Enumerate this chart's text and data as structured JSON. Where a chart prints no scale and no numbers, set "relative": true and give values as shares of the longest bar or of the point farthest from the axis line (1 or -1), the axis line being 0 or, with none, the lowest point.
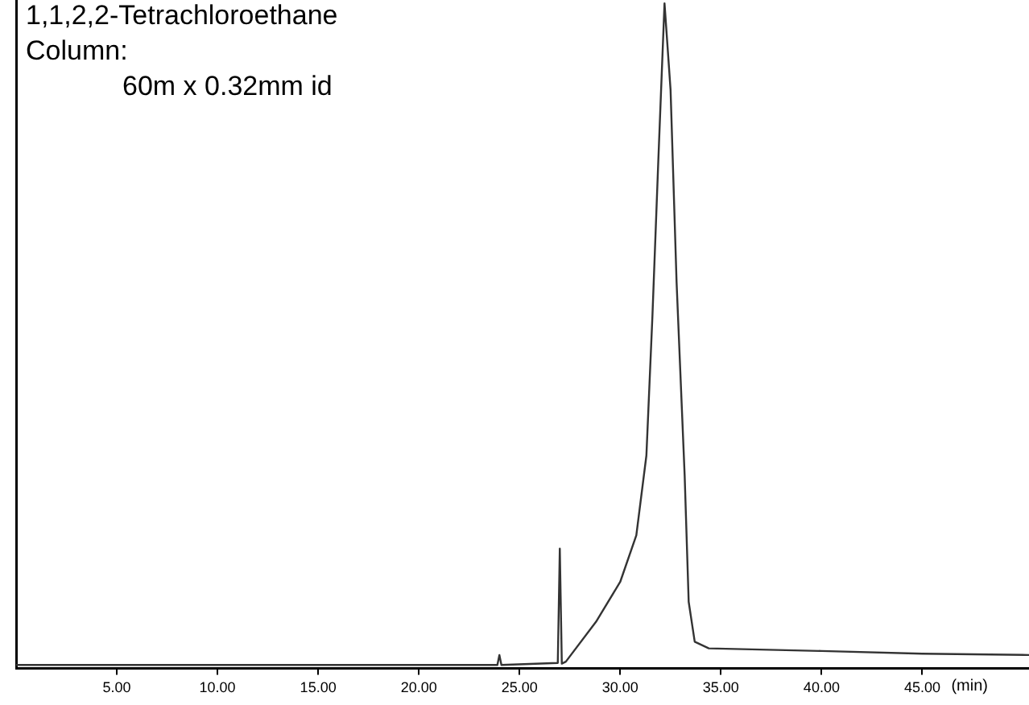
{
  "chart_data": {
    "type": "line",
    "title": "1,1,2,2-Tetrachloroethane",
    "annotations": [
      "Column:",
      "60m x 0.32mm id"
    ],
    "xlabel": "(min)",
    "relative": true,
    "tick_labels": "x",
    "grid": false,
    "legend": false,
    "marker": "none",
    "line_style": "solid",
    "xlim": [
      0,
      50.3
    ],
    "xticks": [
      {
        "value": 5,
        "label": "5.00"
      },
      {
        "value": 10,
        "label": "10.00"
      },
      {
        "value": 15,
        "label": "15.00"
      },
      {
        "value": 20,
        "label": "20.00"
      },
      {
        "value": 25,
        "label": "25.00"
      },
      {
        "value": 30,
        "label": "30.00"
      },
      {
        "value": 35,
        "label": "35.00"
      },
      {
        "value": 40,
        "label": "40.00"
      },
      {
        "value": 45,
        "label": "45.00"
      }
    ],
    "series": [
      {
        "color": "#333333",
        "x": [
          0,
          23.9,
          24.0,
          24.1,
          26.9,
          27.0,
          27.1,
          27.3,
          28.8,
          30.0,
          30.8,
          31.3,
          31.6,
          31.9,
          32.2,
          32.5,
          32.8,
          33.2,
          33.4,
          33.7,
          34.4,
          40,
          45,
          50.3
        ],
        "values": [
          0.005,
          0.005,
          0.02,
          0.005,
          0.008,
          0.18,
          0.007,
          0.01,
          0.07,
          0.13,
          0.2,
          0.32,
          0.53,
          0.77,
          1,
          0.87,
          0.58,
          0.29,
          0.1,
          0.04,
          0.03,
          0.026,
          0.022,
          0.02
        ]
      }
    ]
  }
}
